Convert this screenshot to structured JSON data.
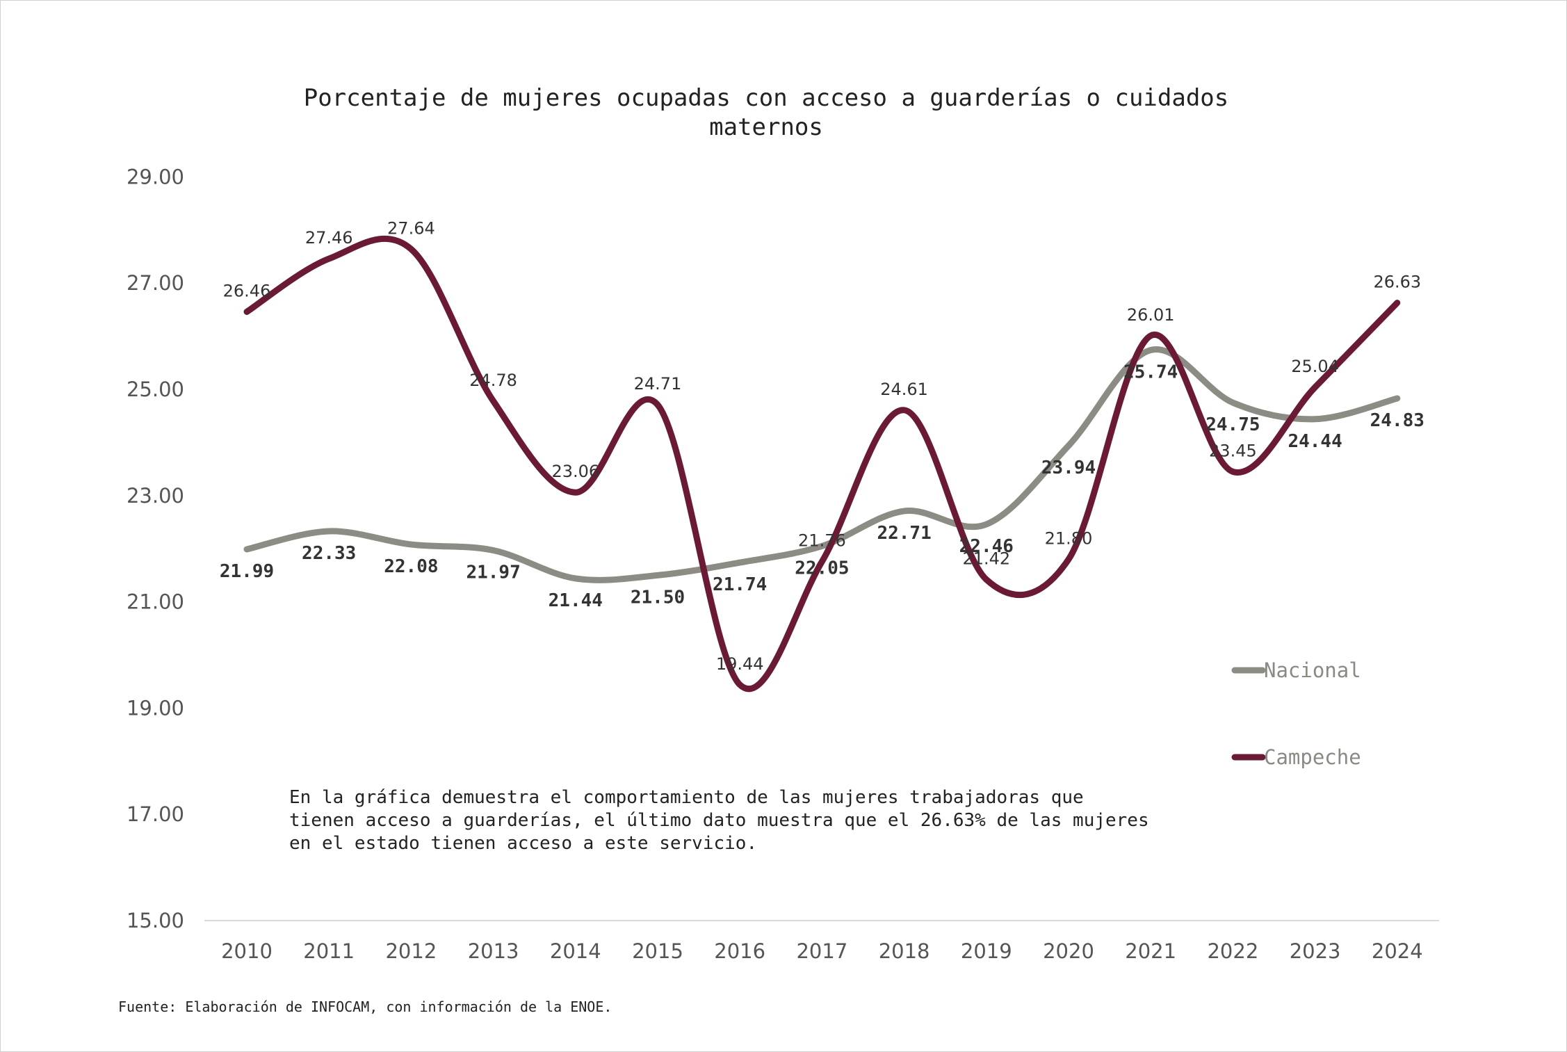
{
  "chart_data": {
    "type": "line",
    "title_lines": [
      "Porcentaje de mujeres ocupadas con acceso a guarderías o cuidados",
      "maternos"
    ],
    "x": [
      "2010",
      "2011",
      "2012",
      "2013",
      "2014",
      "2015",
      "2016",
      "2017",
      "2018",
      "2019",
      "2020",
      "2021",
      "2022",
      "2023",
      "2024"
    ],
    "y_ticks": [
      "15.00",
      "17.00",
      "19.00",
      "21.00",
      "23.00",
      "25.00",
      "27.00",
      "29.00"
    ],
    "ylim": [
      15,
      29
    ],
    "grid": false,
    "legend_position": "right",
    "series": [
      {
        "name": "Nacional",
        "color": "#8c8c84",
        "values": [
          21.99,
          22.33,
          22.08,
          21.97,
          21.44,
          21.5,
          21.74,
          22.05,
          22.71,
          22.46,
          23.94,
          25.74,
          24.75,
          24.44,
          24.83
        ],
        "labels": [
          "21.99",
          "22.33",
          "22.08",
          "21.97",
          "21.44",
          "21.50",
          "21.74",
          "22.05",
          "22.71",
          "22.46",
          "23.94",
          "25.74",
          "24.75",
          "24.44",
          "24.83"
        ]
      },
      {
        "name": "Campeche",
        "color": "#6b1a35",
        "values": [
          26.46,
          27.46,
          27.64,
          24.78,
          23.06,
          24.71,
          19.44,
          21.76,
          24.61,
          21.42,
          21.8,
          26.01,
          23.45,
          25.04,
          26.63
        ],
        "labels": [
          "26.46",
          "27.46",
          "27.64",
          "24.78",
          "23.06",
          "24.71",
          "19.44",
          "21.76",
          "24.61",
          "21.42",
          "21.80",
          "26.01",
          "23.45",
          "25.04",
          "26.63"
        ]
      }
    ],
    "annotation_lines": [
      "En la gráfica demuestra el comportamiento de las mujeres trabajadoras que",
      "tienen acceso a guarderías, el último dato muestra que el 26.63% de las mujeres",
      "en el estado tienen acceso a este servicio."
    ],
    "source": "Fuente: Elaboración de INFOCAM, con información de la ENOE."
  }
}
